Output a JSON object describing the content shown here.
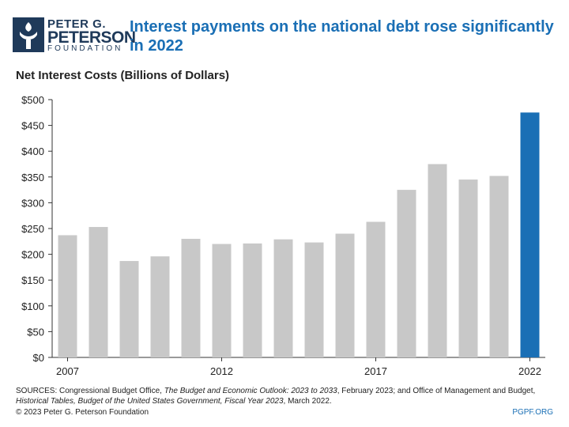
{
  "logo": {
    "line1": "PETER G.",
    "line2": "PETERSON",
    "line3": "FOUNDATION"
  },
  "title": "Interest payments on the national debt rose significantly in 2022",
  "subtitle": "Net Interest Costs (Billions of Dollars)",
  "chart_data": {
    "type": "bar",
    "title": "Interest payments on the national debt rose significantly in 2022",
    "ylabel": "Net Interest Costs (Billions of Dollars)",
    "categories": [
      "2007",
      "2008",
      "2009",
      "2010",
      "2011",
      "2012",
      "2013",
      "2014",
      "2015",
      "2016",
      "2017",
      "2018",
      "2019",
      "2020",
      "2021",
      "2022"
    ],
    "values": [
      237,
      253,
      187,
      196,
      230,
      220,
      221,
      229,
      223,
      240,
      263,
      325,
      375,
      345,
      352,
      475
    ],
    "x_tick_labels": [
      "2007",
      "2012",
      "2017",
      "2022"
    ],
    "y_ticks": [
      "$0",
      "$50",
      "$100",
      "$150",
      "$200",
      "$250",
      "$300",
      "$350",
      "$400",
      "$450",
      "$500"
    ],
    "ylim": [
      0,
      500
    ],
    "grid": false,
    "highlight_category": "2022",
    "colors": {
      "default": "#c8c8c8",
      "highlight": "#1a6fb5",
      "axis": "#333333"
    }
  },
  "footer": {
    "sources_prefix": "SOURCES: Congressional Budget Office, ",
    "sources_italic1": "The Budget and Economic Outlook: 2023 to 2033",
    "sources_mid": ", February 2023; and Office of Management and Budget, ",
    "sources_italic2": "Historical Tables, Budget of the United States Government, Fiscal Year 2023",
    "sources_suffix": ", March 2022.",
    "copyright": "© 2023 Peter G. Peterson Foundation",
    "url": "PGPF.ORG"
  }
}
